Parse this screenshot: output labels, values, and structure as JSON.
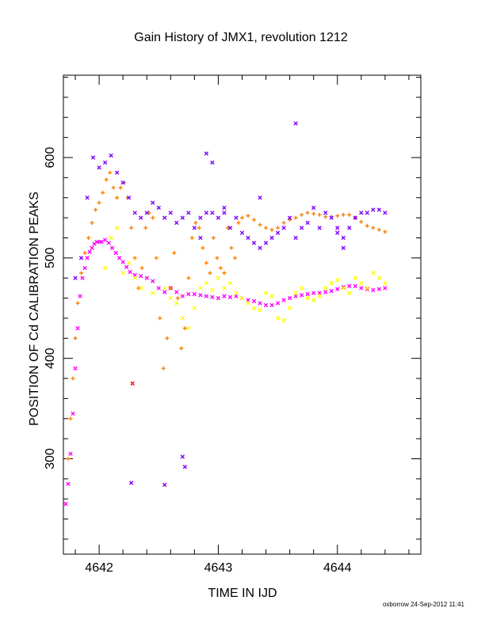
{
  "chart_data": {
    "type": "scatter",
    "title": "Gain History of JMX1, revolution 1212",
    "xlabel": "TIME IN IJD",
    "ylabel": "POSITION OF Cd CALIBRATION PEAKS",
    "xlim": [
      4641.7,
      4644.7
    ],
    "ylim": [
      205,
      682
    ],
    "xticks": [
      4642,
      4643,
      4644
    ],
    "yticks": [
      300,
      400,
      500,
      600
    ],
    "grid": false,
    "credit": "oxborrow 24-Sep-2012 11:41",
    "series": [
      {
        "color": "#ff00ff",
        "points": [
          [
            4641.72,
            255
          ],
          [
            4641.74,
            275
          ],
          [
            4641.76,
            305
          ],
          [
            4641.78,
            345
          ],
          [
            4641.8,
            390
          ],
          [
            4641.82,
            430
          ],
          [
            4641.84,
            462
          ],
          [
            4641.86,
            480
          ],
          [
            4641.88,
            490
          ],
          [
            4641.9,
            500
          ],
          [
            4641.92,
            506
          ],
          [
            4641.94,
            510
          ],
          [
            4641.96,
            514
          ],
          [
            4641.98,
            516
          ],
          [
            4642.0,
            516
          ],
          [
            4642.02,
            516
          ],
          [
            4642.05,
            518
          ],
          [
            4642.08,
            515
          ],
          [
            4642.11,
            510
          ],
          [
            4642.14,
            505
          ],
          [
            4642.17,
            500
          ],
          [
            4642.2,
            496
          ],
          [
            4642.23,
            491
          ],
          [
            4642.26,
            486
          ],
          [
            4642.3,
            483
          ],
          [
            4642.35,
            482
          ],
          [
            4642.4,
            480
          ],
          [
            4642.45,
            477
          ],
          [
            4642.5,
            470
          ],
          [
            4642.55,
            466
          ],
          [
            4642.6,
            470
          ],
          [
            4642.65,
            466
          ],
          [
            4642.7,
            462
          ],
          [
            4642.75,
            464
          ],
          [
            4642.8,
            464
          ],
          [
            4642.85,
            463
          ],
          [
            4642.9,
            462
          ],
          [
            4642.95,
            461
          ],
          [
            4643.0,
            460
          ],
          [
            4643.05,
            462
          ],
          [
            4643.1,
            461
          ],
          [
            4643.15,
            462
          ],
          [
            4643.2,
            460
          ],
          [
            4643.25,
            458
          ],
          [
            4643.3,
            457
          ],
          [
            4643.35,
            455
          ],
          [
            4643.4,
            453
          ],
          [
            4643.45,
            453
          ],
          [
            4643.5,
            455
          ],
          [
            4643.55,
            458
          ],
          [
            4643.6,
            460
          ],
          [
            4643.65,
            462
          ],
          [
            4643.7,
            463
          ],
          [
            4643.75,
            464
          ],
          [
            4643.8,
            465
          ],
          [
            4643.85,
            465
          ],
          [
            4643.9,
            466
          ],
          [
            4643.95,
            467
          ],
          [
            4644.0,
            469
          ],
          [
            4644.05,
            471
          ],
          [
            4644.1,
            472
          ],
          [
            4644.15,
            472
          ],
          [
            4644.2,
            470
          ],
          [
            4644.25,
            469
          ],
          [
            4644.3,
            468
          ],
          [
            4644.35,
            469
          ],
          [
            4644.4,
            470
          ]
        ]
      },
      {
        "color": "#ff7f00",
        "points": [
          [
            4641.74,
            300
          ],
          [
            4641.76,
            340
          ],
          [
            4641.78,
            380
          ],
          [
            4641.8,
            420
          ],
          [
            4641.82,
            455
          ],
          [
            4641.85,
            485
          ],
          [
            4641.88,
            505
          ],
          [
            4641.91,
            520
          ],
          [
            4641.94,
            535
          ],
          [
            4641.97,
            548
          ],
          [
            4642.0,
            555
          ],
          [
            4642.03,
            565
          ],
          [
            4642.06,
            578
          ],
          [
            4642.09,
            585
          ],
          [
            4642.12,
            570
          ],
          [
            4642.15,
            560
          ],
          [
            4642.18,
            570
          ],
          [
            4642.21,
            575
          ],
          [
            4642.24,
            560
          ],
          [
            4642.27,
            530
          ],
          [
            4642.3,
            500
          ],
          [
            4642.33,
            470
          ],
          [
            4642.36,
            490
          ],
          [
            4642.39,
            530
          ],
          [
            4642.42,
            545
          ],
          [
            4642.45,
            540
          ],
          [
            4642.48,
            500
          ],
          [
            4642.51,
            440
          ],
          [
            4642.54,
            390
          ],
          [
            4642.57,
            420
          ],
          [
            4642.6,
            470
          ],
          [
            4642.63,
            505
          ],
          [
            4642.66,
            460
          ],
          [
            4642.69,
            410
          ],
          [
            4642.72,
            430
          ],
          [
            4642.75,
            480
          ],
          [
            4642.78,
            520
          ],
          [
            4642.81,
            535
          ],
          [
            4642.84,
            530
          ],
          [
            4642.87,
            510
          ],
          [
            4642.9,
            495
          ],
          [
            4642.93,
            485
          ],
          [
            4642.96,
            520
          ],
          [
            4642.99,
            500
          ],
          [
            4643.02,
            490
          ],
          [
            4643.05,
            485
          ],
          [
            4643.08,
            530
          ],
          [
            4643.11,
            510
          ],
          [
            4643.14,
            500
          ],
          [
            4643.17,
            535
          ],
          [
            4643.2,
            540
          ],
          [
            4643.25,
            542
          ],
          [
            4643.3,
            538
          ],
          [
            4643.35,
            533
          ],
          [
            4643.4,
            530
          ],
          [
            4643.45,
            528
          ],
          [
            4643.5,
            530
          ],
          [
            4643.55,
            535
          ],
          [
            4643.6,
            538
          ],
          [
            4643.65,
            540
          ],
          [
            4643.7,
            543
          ],
          [
            4643.75,
            545
          ],
          [
            4643.8,
            544
          ],
          [
            4643.85,
            543
          ],
          [
            4643.9,
            541
          ],
          [
            4643.95,
            541
          ],
          [
            4644.0,
            542
          ],
          [
            4644.05,
            543
          ],
          [
            4644.1,
            543
          ],
          [
            4644.15,
            540
          ],
          [
            4644.2,
            536
          ],
          [
            4644.25,
            532
          ],
          [
            4644.3,
            530
          ],
          [
            4644.35,
            528
          ],
          [
            4644.4,
            526
          ]
        ]
      },
      {
        "color": "#ffff00",
        "points": [
          [
            4642.05,
            490
          ],
          [
            4642.1,
            520
          ],
          [
            4642.15,
            530
          ],
          [
            4642.2,
            485
          ],
          [
            4642.25,
            495
          ],
          [
            4642.3,
            480
          ],
          [
            4642.35,
            470
          ],
          [
            4642.45,
            465
          ],
          [
            4642.55,
            470
          ],
          [
            4642.6,
            460
          ],
          [
            4642.65,
            455
          ],
          [
            4642.7,
            440
          ],
          [
            4642.75,
            430
          ],
          [
            4642.8,
            450
          ],
          [
            4642.85,
            470
          ],
          [
            4642.9,
            475
          ],
          [
            4642.95,
            468
          ],
          [
            4643.0,
            480
          ],
          [
            4643.05,
            470
          ],
          [
            4643.1,
            475
          ],
          [
            4643.15,
            465
          ],
          [
            4643.2,
            460
          ],
          [
            4643.25,
            455
          ],
          [
            4643.3,
            450
          ],
          [
            4643.35,
            448
          ],
          [
            4643.4,
            465
          ],
          [
            4643.45,
            462
          ],
          [
            4643.5,
            440
          ],
          [
            4643.55,
            438
          ],
          [
            4643.6,
            450
          ],
          [
            4643.65,
            465
          ],
          [
            4643.7,
            470
          ],
          [
            4643.75,
            460
          ],
          [
            4643.8,
            458
          ],
          [
            4643.85,
            462
          ],
          [
            4643.9,
            470
          ],
          [
            4643.95,
            475
          ],
          [
            4644.0,
            478
          ],
          [
            4644.05,
            470
          ],
          [
            4644.1,
            465
          ],
          [
            4644.15,
            480
          ],
          [
            4644.2,
            475
          ],
          [
            4644.25,
            470
          ],
          [
            4644.3,
            485
          ],
          [
            4644.35,
            480
          ],
          [
            4644.4,
            475
          ]
        ]
      },
      {
        "color": "#7f00ff",
        "points": [
          [
            4641.8,
            480
          ],
          [
            4641.85,
            500
          ],
          [
            4641.9,
            560
          ],
          [
            4641.95,
            600
          ],
          [
            4642.0,
            590
          ],
          [
            4642.05,
            595
          ],
          [
            4642.1,
            602
          ],
          [
            4642.15,
            585
          ],
          [
            4642.2,
            575
          ],
          [
            4642.25,
            560
          ],
          [
            4642.3,
            545
          ],
          [
            4642.35,
            540
          ],
          [
            4642.4,
            545
          ],
          [
            4642.45,
            555
          ],
          [
            4642.5,
            550
          ],
          [
            4642.55,
            540
          ],
          [
            4642.6,
            545
          ],
          [
            4642.65,
            535
          ],
          [
            4642.7,
            540
          ],
          [
            4642.75,
            545
          ],
          [
            4642.8,
            530
          ],
          [
            4642.85,
            540
          ],
          [
            4642.9,
            545
          ],
          [
            4642.95,
            545
          ],
          [
            4643.0,
            540
          ],
          [
            4643.05,
            550
          ],
          [
            4643.1,
            530
          ],
          [
            4643.15,
            540
          ],
          [
            4643.2,
            525
          ],
          [
            4643.25,
            520
          ],
          [
            4643.3,
            515
          ],
          [
            4643.35,
            510
          ],
          [
            4643.4,
            515
          ],
          [
            4643.45,
            520
          ],
          [
            4643.5,
            525
          ],
          [
            4643.55,
            530
          ],
          [
            4643.6,
            540
          ],
          [
            4643.65,
            520
          ],
          [
            4643.7,
            530
          ],
          [
            4643.75,
            535
          ],
          [
            4643.8,
            550
          ],
          [
            4643.85,
            530
          ],
          [
            4643.9,
            545
          ],
          [
            4643.95,
            540
          ],
          [
            4644.0,
            525
          ],
          [
            4644.05,
            520
          ],
          [
            4644.1,
            530
          ],
          [
            4644.15,
            540
          ],
          [
            4644.2,
            545
          ],
          [
            4644.25,
            545
          ],
          [
            4644.3,
            548
          ],
          [
            4644.35,
            548
          ],
          [
            4644.4,
            545
          ]
        ]
      },
      {
        "color": "#7f00ff",
        "points": [
          [
            4642.27,
            276
          ],
          [
            4642.55,
            274
          ],
          [
            4642.7,
            302
          ],
          [
            4642.72,
            292
          ],
          [
            4642.85,
            520
          ],
          [
            4642.9,
            604
          ],
          [
            4642.95,
            595
          ],
          [
            4643.05,
            545
          ],
          [
            4643.35,
            560
          ],
          [
            4643.65,
            634
          ],
          [
            4644.0,
            530
          ],
          [
            4644.05,
            510
          ]
        ]
      },
      {
        "color": "#ff0000",
        "points": [
          [
            4642.28,
            375
          ]
        ]
      }
    ]
  }
}
